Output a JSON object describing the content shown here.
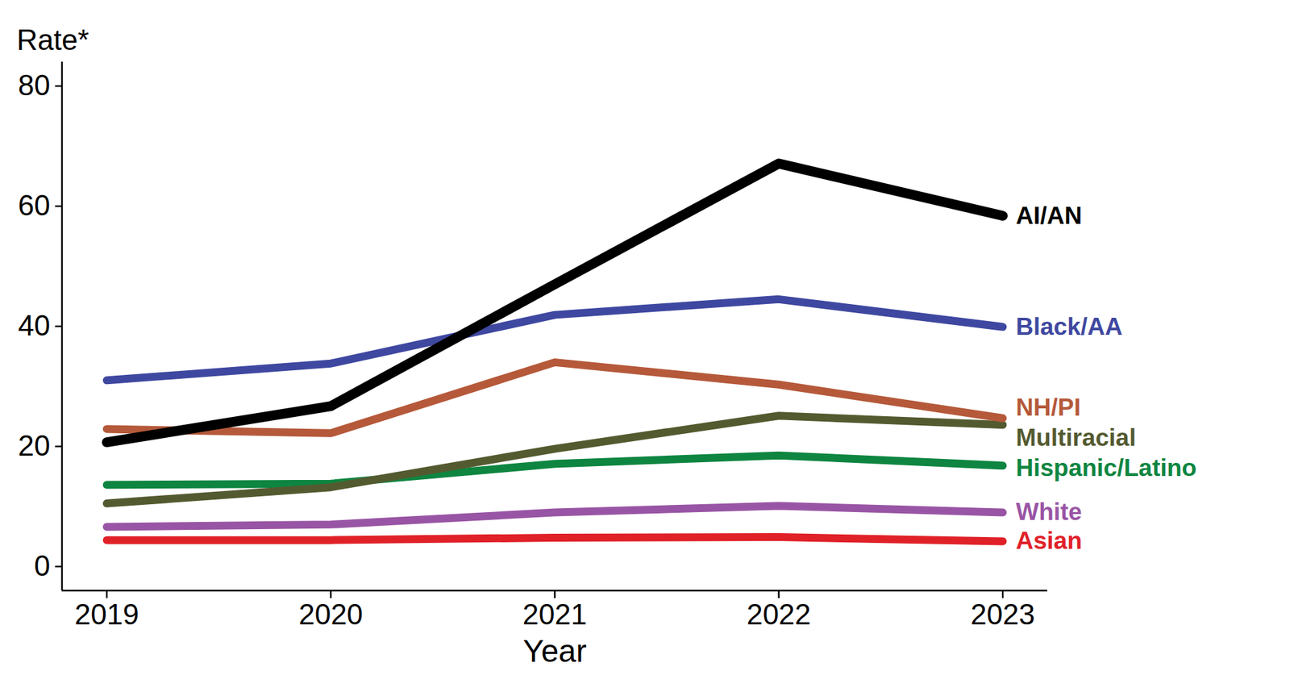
{
  "chart_data": {
    "type": "line",
    "x_label": "Year",
    "y_label": "Rate*",
    "x": [
      2019,
      2020,
      2021,
      2022,
      2023
    ],
    "xlim": [
      2018.8,
      2023.2
    ],
    "xticks": [
      2019,
      2020,
      2021,
      2022,
      2023
    ],
    "ylim": [
      -4,
      84
    ],
    "yticks": [
      0,
      20,
      40,
      60,
      80
    ],
    "grid": false,
    "series": [
      {
        "name": "AI/AN",
        "color": "#000000",
        "values": [
          20.7,
          26.7,
          47.0,
          67.1,
          58.4
        ]
      },
      {
        "name": "Black/AA",
        "color": "#3f48a0",
        "values": [
          31.0,
          33.8,
          41.9,
          44.5,
          39.9
        ]
      },
      {
        "name": "NH/PI",
        "color": "#b5593a",
        "values": [
          22.9,
          22.2,
          34.0,
          30.3,
          24.7
        ]
      },
      {
        "name": "Multiracial",
        "color": "#545a30",
        "values": [
          10.5,
          13.2,
          19.6,
          25.1,
          23.6
        ]
      },
      {
        "name": "Hispanic/Latino",
        "color": "#0e8541",
        "values": [
          13.6,
          13.8,
          17.1,
          18.5,
          16.8
        ]
      },
      {
        "name": "White",
        "color": "#9955a5",
        "values": [
          6.6,
          7.0,
          9.0,
          10.1,
          9.0
        ]
      },
      {
        "name": "Asian",
        "color": "#e02128",
        "values": [
          4.4,
          4.4,
          4.8,
          4.9,
          4.2
        ]
      }
    ]
  }
}
